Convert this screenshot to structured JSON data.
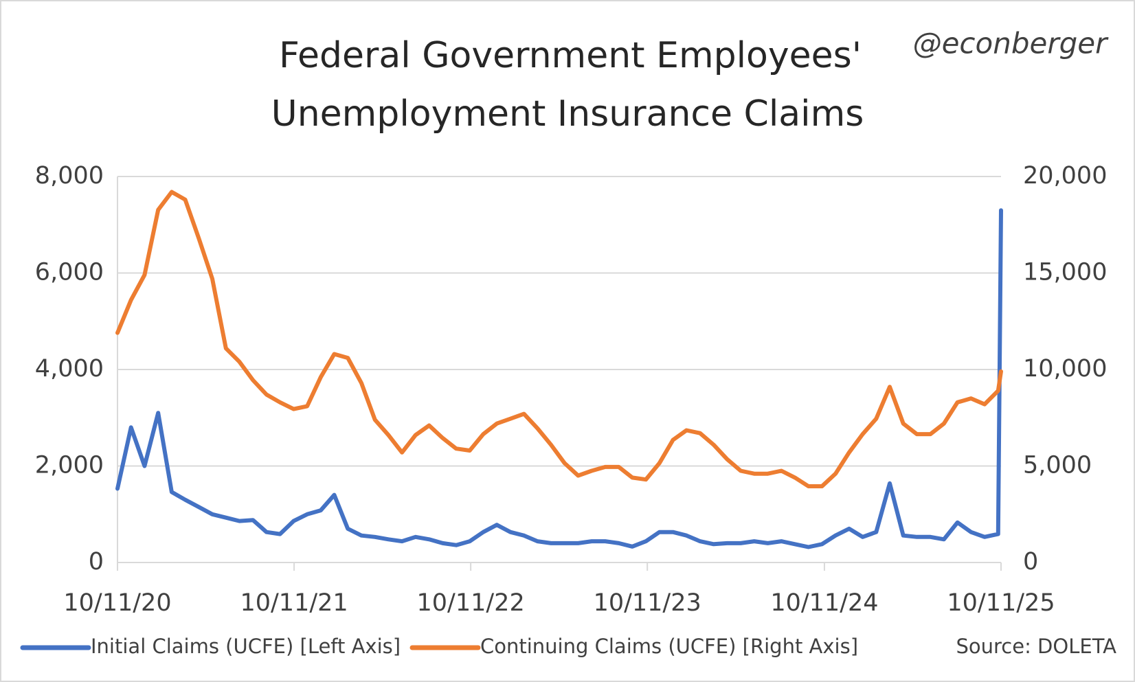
{
  "chart_data": {
    "type": "line",
    "title": [
      "Federal Government Employees'",
      "Unemployment Insurance Claims"
    ],
    "annotations": [
      "@econberger",
      "Source: DOLETA"
    ],
    "x": [
      "10/11/20",
      "11/8/20",
      "12/6/20",
      "1/3/21",
      "1/31/21",
      "2/28/21",
      "3/28/21",
      "4/25/21",
      "5/23/21",
      "6/20/21",
      "7/18/21",
      "8/15/21",
      "9/12/21",
      "10/10/21",
      "11/7/21",
      "12/5/21",
      "1/2/22",
      "1/30/22",
      "2/27/22",
      "3/27/22",
      "4/24/22",
      "5/22/22",
      "6/19/22",
      "7/17/22",
      "8/14/22",
      "9/11/22",
      "10/9/22",
      "11/6/22",
      "12/4/22",
      "1/1/23",
      "1/29/23",
      "2/26/23",
      "3/26/23",
      "4/23/23",
      "5/21/23",
      "6/18/23",
      "7/16/23",
      "8/13/23",
      "9/10/23",
      "10/8/23",
      "11/5/23",
      "12/3/23",
      "12/31/23",
      "1/28/24",
      "2/25/24",
      "3/24/24",
      "4/21/24",
      "5/19/24",
      "6/16/24",
      "7/14/24",
      "8/11/24",
      "9/8/24",
      "10/6/24",
      "11/3/24",
      "12/1/24",
      "12/29/24",
      "1/26/25",
      "2/23/25",
      "3/23/25",
      "4/20/25",
      "5/18/25",
      "6/15/25",
      "7/13/25",
      "8/10/25",
      "9/7/25",
      "10/5/25",
      "10/11/25"
    ],
    "series": [
      {
        "name": "Initial Claims (UCFE) [Left Axis]",
        "color": "#4472c4",
        "axis": "y",
        "values": [
          1530,
          2800,
          2000,
          3100,
          1460,
          1300,
          1150,
          1000,
          930,
          860,
          880,
          630,
          590,
          860,
          1000,
          1080,
          1400,
          700,
          560,
          530,
          480,
          440,
          530,
          480,
          400,
          360,
          440,
          630,
          780,
          630,
          560,
          440,
          400,
          400,
          400,
          440,
          440,
          400,
          330,
          440,
          630,
          630,
          560,
          440,
          380,
          400,
          400,
          440,
          400,
          440,
          380,
          320,
          380,
          560,
          700,
          530,
          630,
          1640,
          560,
          530,
          530,
          480,
          830,
          630,
          530,
          590,
          7300
        ]
      },
      {
        "name": "Continuing Claims (UCFE) [Right Axis]",
        "color": "#ed7d31",
        "axis": "y2",
        "values": [
          11900,
          13600,
          14900,
          18270,
          19200,
          18800,
          16800,
          14700,
          11100,
          10400,
          9450,
          8700,
          8300,
          7950,
          8100,
          9600,
          10800,
          10600,
          9300,
          7400,
          6600,
          5700,
          6600,
          7100,
          6450,
          5900,
          5800,
          6650,
          7200,
          7450,
          7700,
          6950,
          6100,
          5150,
          4500,
          4750,
          4950,
          4950,
          4400,
          4300,
          5150,
          6350,
          6850,
          6700,
          6100,
          5350,
          4750,
          4600,
          4600,
          4750,
          4400,
          3950,
          3950,
          4600,
          5700,
          6650,
          7450,
          9100,
          7200,
          6650,
          6650,
          7200,
          8300,
          8500,
          8200,
          8900,
          9900
        ]
      }
    ],
    "xlim": [
      "10/11/20",
      "10/11/25"
    ],
    "xticks": [
      "10/11/20",
      "10/11/21",
      "10/11/22",
      "10/11/23",
      "10/11/24",
      "10/11/25"
    ],
    "ylim": [
      0,
      8000
    ],
    "yticks": [
      0,
      {
        "value": 2000,
        "label": "2,000"
      },
      {
        "value": 4000,
        "label": "4,000"
      },
      {
        "value": 6000,
        "label": "6,000"
      },
      {
        "value": 8000,
        "label": "8,000"
      }
    ],
    "y2lim": [
      0,
      20000
    ],
    "y2ticks": [
      0,
      {
        "value": 5000,
        "label": "5,000"
      },
      {
        "value": 10000,
        "label": "10,000"
      },
      {
        "value": 15000,
        "label": "15,000"
      },
      {
        "value": 20000,
        "label": "20,000"
      }
    ],
    "grid": true
  }
}
